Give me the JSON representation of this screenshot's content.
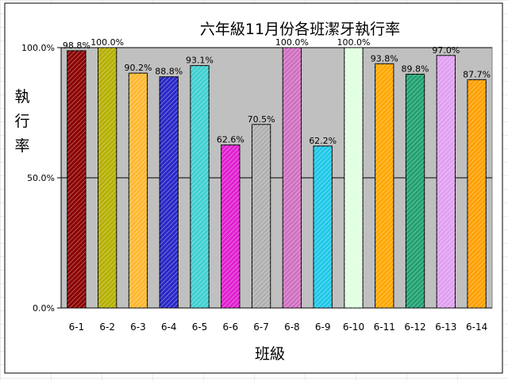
{
  "chart_data": {
    "type": "bar",
    "title": "六年級11月份各班潔牙執行率",
    "xlabel": "班級",
    "ylabel": "執行率",
    "ylabel_chars": [
      "執",
      "行",
      "率"
    ],
    "categories": [
      "6-1",
      "6-2",
      "6-3",
      "6-4",
      "6-5",
      "6-6",
      "6-7",
      "6-8",
      "6-9",
      "6-10",
      "6-11",
      "6-12",
      "6-13",
      "6-14"
    ],
    "values": [
      98.8,
      100.0,
      90.2,
      88.8,
      93.1,
      62.6,
      70.5,
      100.0,
      62.2,
      100.0,
      93.8,
      89.8,
      97.0,
      87.7
    ],
    "value_labels": [
      "98.8%",
      "100.0%",
      "90.2%",
      "88.8%",
      "93.1%",
      "62.6%",
      "70.5%",
      "100.0%",
      "62.2%",
      "100.0%",
      "93.8%",
      "89.8%",
      "97.0%",
      "87.7%"
    ],
    "yticks": [
      0,
      50,
      100
    ],
    "ytick_labels": [
      "0.0%",
      "50.0%",
      "100.0%"
    ],
    "ylim": [
      0,
      100
    ],
    "grid": true,
    "legend": "none",
    "colors": {
      "plot_bg": "#c0c0c0",
      "chart_bg": "#ffffff",
      "bars": [
        "#8b0000",
        "#b5b000",
        "#ffb830",
        "#2828c8",
        "#40d0d0",
        "#e020d0",
        "#b0b0b0",
        "#d070c0",
        "#20c8e8",
        "#e0ffe0",
        "#ffa800",
        "#20a070",
        "#e0a0f0",
        "#ffa000"
      ]
    }
  }
}
